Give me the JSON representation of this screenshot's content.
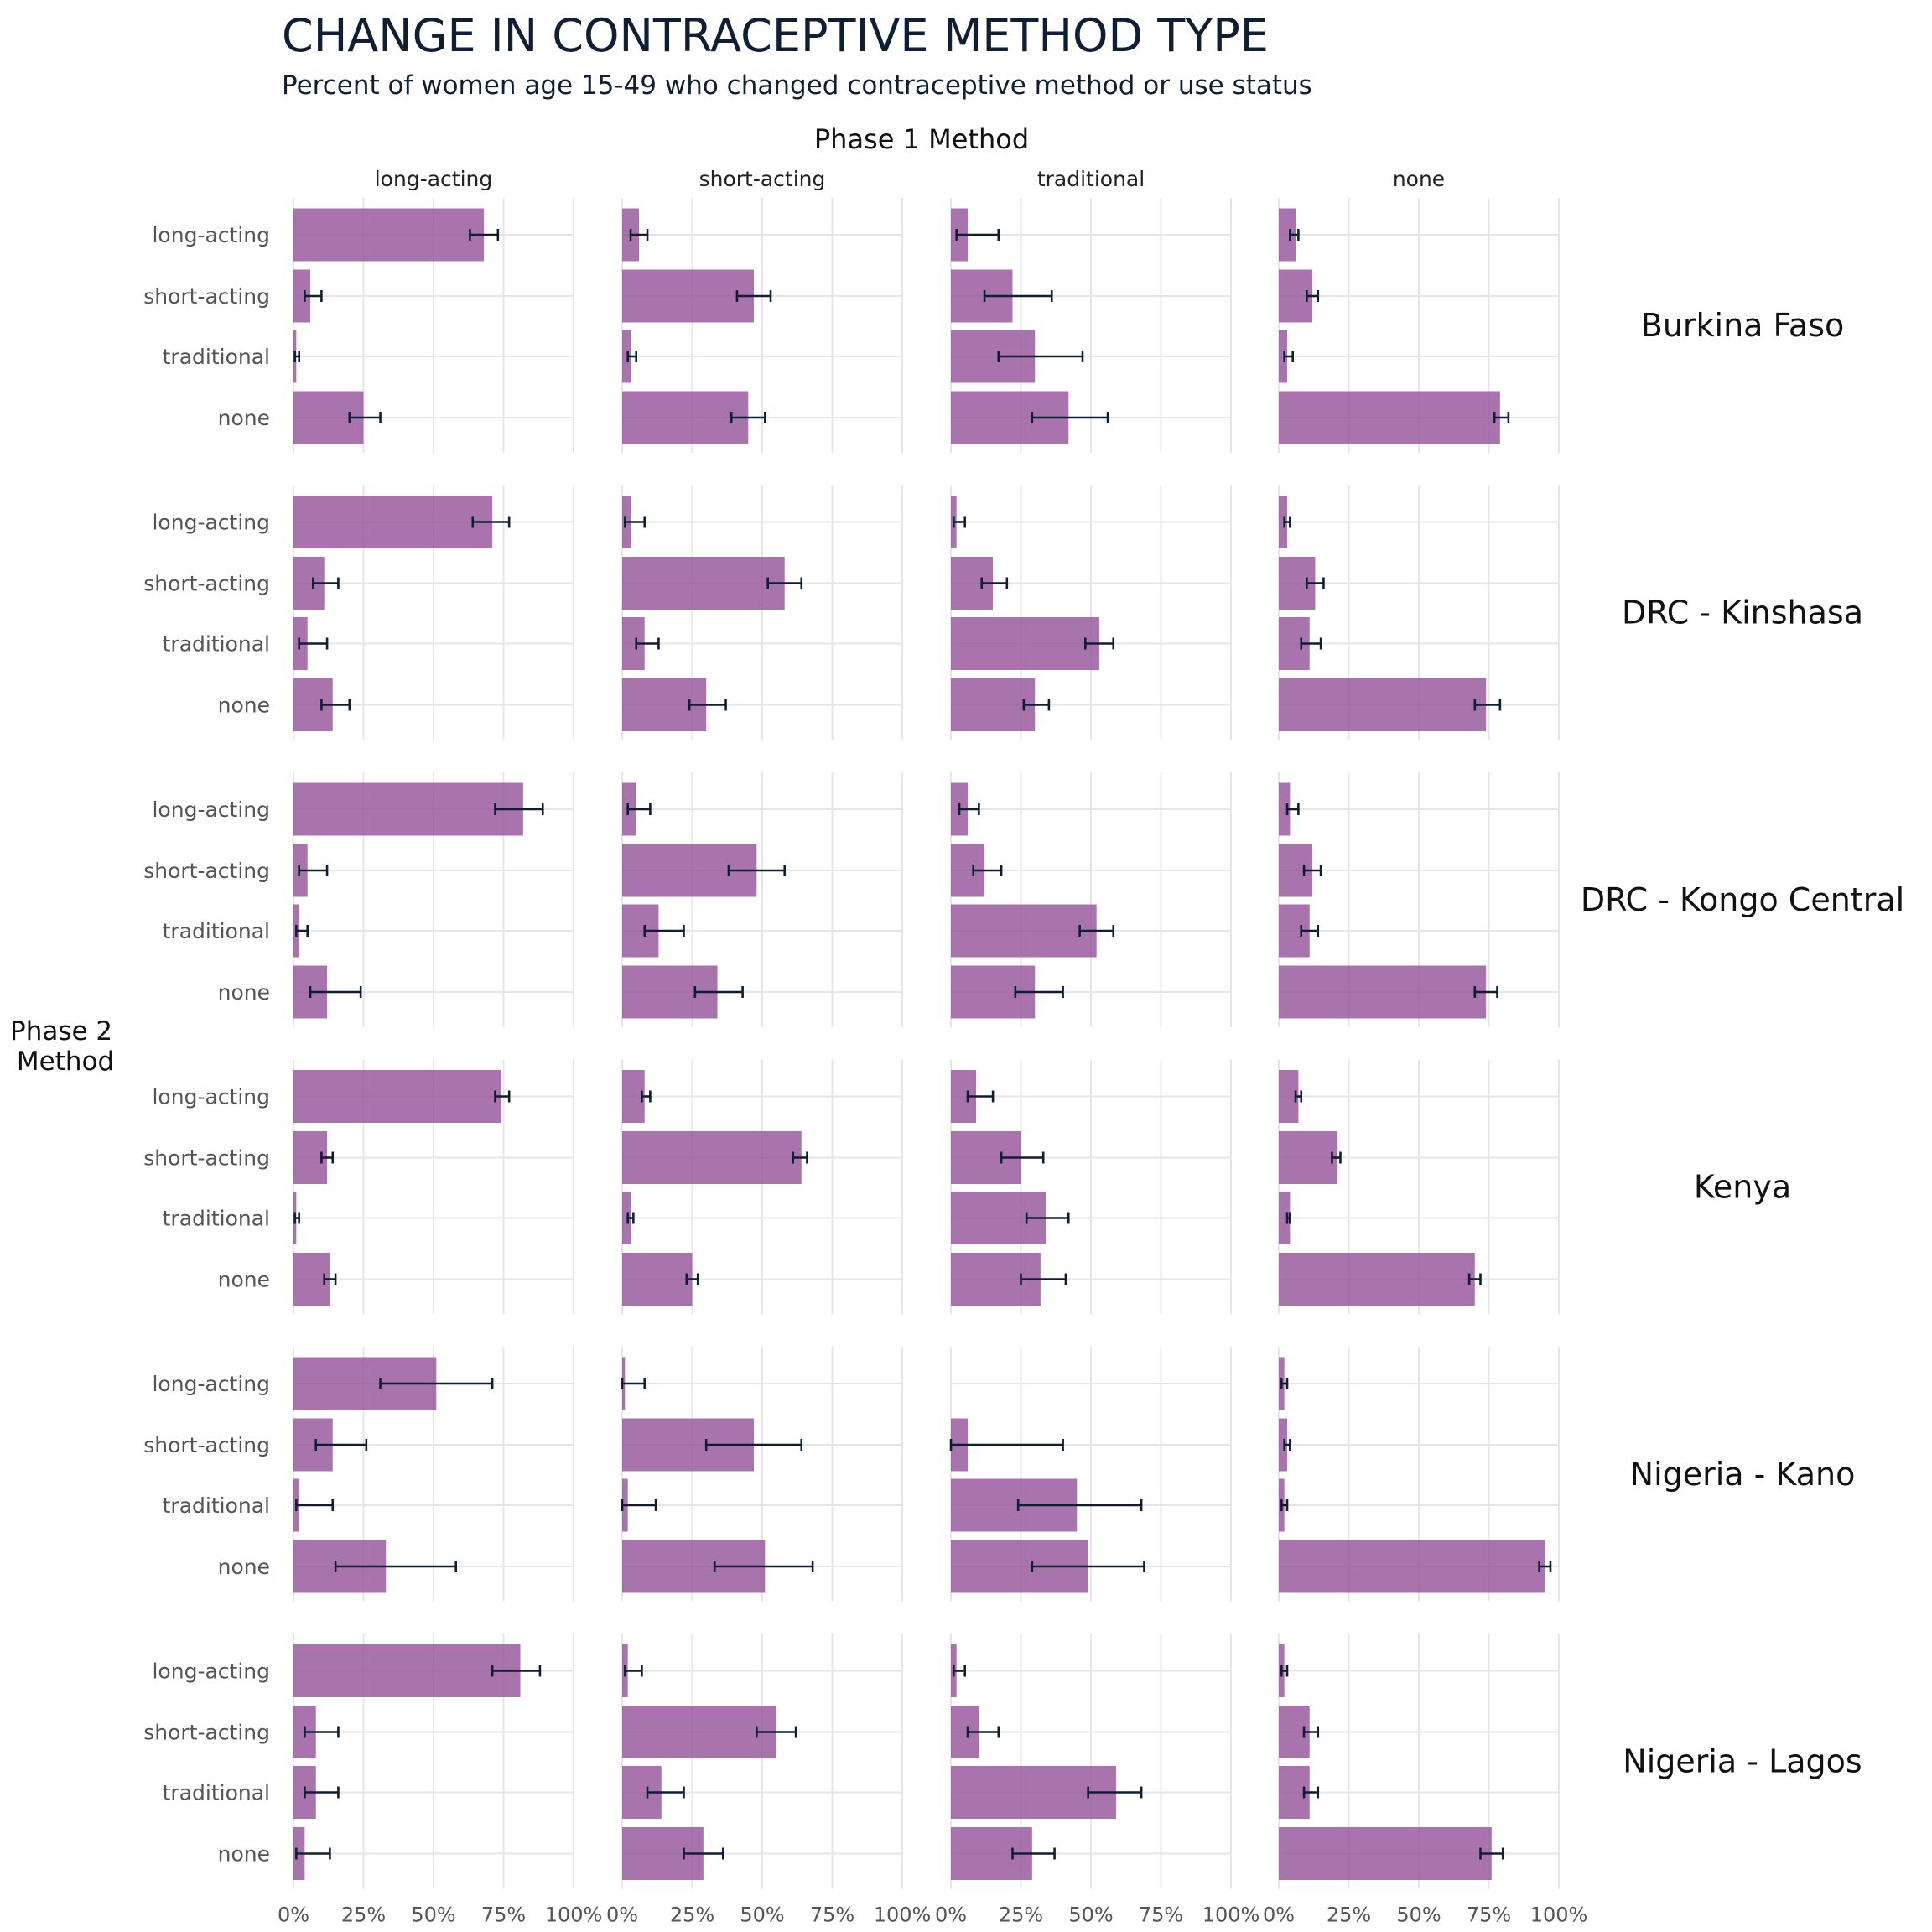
{
  "chart_data": {
    "type": "bar",
    "orientation": "horizontal",
    "title": "CHANGE IN CONTRACEPTIVE METHOD TYPE",
    "subtitle": "Percent of women age 15-49 who changed contraceptive method or use status",
    "column_facet_title": "Phase 1 Method",
    "row_axis_title": [
      "Phase 2",
      "Method"
    ],
    "columns": [
      "long-acting",
      "short-acting",
      "traditional",
      "none"
    ],
    "categories": [
      "long-acting",
      "short-acting",
      "traditional",
      "none"
    ],
    "x_ticks": [
      "0%",
      "25%",
      "50%",
      "75%",
      "100%"
    ],
    "xlim": [
      0,
      100
    ],
    "grid": true,
    "bar_color": "#93519A",
    "errorbar_color": "#0F1F33",
    "panels": [
      {
        "name": "Burkina Faso",
        "data": [
          [
            [
              68,
              63,
              73
            ],
            [
              6,
              4,
              10
            ],
            [
              1,
              0.5,
              2
            ],
            [
              25,
              20,
              31
            ]
          ],
          [
            [
              6,
              3,
              9
            ],
            [
              47,
              41,
              53
            ],
            [
              3,
              2,
              5
            ],
            [
              45,
              39,
              51
            ]
          ],
          [
            [
              6,
              2,
              17
            ],
            [
              22,
              12,
              36
            ],
            [
              30,
              17,
              47
            ],
            [
              42,
              29,
              56
            ]
          ],
          [
            [
              6,
              4,
              7
            ],
            [
              12,
              10,
              14
            ],
            [
              3,
              2,
              5
            ],
            [
              79,
              77,
              82
            ]
          ]
        ]
      },
      {
        "name": "DRC - Kinshasa",
        "data": [
          [
            [
              71,
              64,
              77
            ],
            [
              11,
              7,
              16
            ],
            [
              5,
              2,
              12
            ],
            [
              14,
              10,
              20
            ]
          ],
          [
            [
              3,
              1,
              8
            ],
            [
              58,
              52,
              64
            ],
            [
              8,
              5,
              13
            ],
            [
              30,
              24,
              37
            ]
          ],
          [
            [
              2,
              1,
              5
            ],
            [
              15,
              11,
              20
            ],
            [
              53,
              48,
              58
            ],
            [
              30,
              26,
              35
            ]
          ],
          [
            [
              3,
              2,
              4
            ],
            [
              13,
              10,
              16
            ],
            [
              11,
              8,
              15
            ],
            [
              74,
              70,
              79
            ]
          ]
        ]
      },
      {
        "name": "DRC - Kongo Central",
        "data": [
          [
            [
              82,
              72,
              89
            ],
            [
              5,
              2,
              12
            ],
            [
              2,
              1,
              5
            ],
            [
              12,
              6,
              24
            ]
          ],
          [
            [
              5,
              2,
              10
            ],
            [
              48,
              38,
              58
            ],
            [
              13,
              8,
              22
            ],
            [
              34,
              26,
              43
            ]
          ],
          [
            [
              6,
              3,
              10
            ],
            [
              12,
              8,
              18
            ],
            [
              52,
              46,
              58
            ],
            [
              30,
              23,
              40
            ]
          ],
          [
            [
              4,
              3,
              7
            ],
            [
              12,
              9,
              15
            ],
            [
              11,
              8,
              14
            ],
            [
              74,
              70,
              78
            ]
          ]
        ]
      },
      {
        "name": "Kenya",
        "data": [
          [
            [
              74,
              72,
              77
            ],
            [
              12,
              10,
              14
            ],
            [
              1,
              0.5,
              2
            ],
            [
              13,
              11,
              15
            ]
          ],
          [
            [
              8,
              7,
              10
            ],
            [
              64,
              61,
              66
            ],
            [
              3,
              2,
              4
            ],
            [
              25,
              23,
              27
            ]
          ],
          [
            [
              9,
              6,
              15
            ],
            [
              25,
              18,
              33
            ],
            [
              34,
              27,
              42
            ],
            [
              32,
              25,
              41
            ]
          ],
          [
            [
              7,
              6,
              8
            ],
            [
              21,
              19,
              22
            ],
            [
              4,
              3,
              4
            ],
            [
              70,
              68,
              72
            ]
          ]
        ]
      },
      {
        "name": "Nigeria - Kano",
        "data": [
          [
            [
              51,
              31,
              71
            ],
            [
              14,
              8,
              26
            ],
            [
              2,
              1,
              14
            ],
            [
              33,
              15,
              58
            ]
          ],
          [
            [
              1,
              0,
              8
            ],
            [
              47,
              30,
              64
            ],
            [
              2,
              0,
              12
            ],
            [
              51,
              33,
              68
            ]
          ],
          [
            [
              0,
              0,
              0
            ],
            [
              6,
              0,
              40
            ],
            [
              45,
              24,
              68
            ],
            [
              49,
              29,
              69
            ]
          ],
          [
            [
              2,
              1,
              3
            ],
            [
              3,
              2,
              4
            ],
            [
              2,
              1,
              3
            ],
            [
              95,
              93,
              97
            ]
          ]
        ]
      },
      {
        "name": "Nigeria - Lagos",
        "data": [
          [
            [
              81,
              71,
              88
            ],
            [
              8,
              4,
              16
            ],
            [
              8,
              4,
              16
            ],
            [
              4,
              1,
              13
            ]
          ],
          [
            [
              2,
              1,
              7
            ],
            [
              55,
              48,
              62
            ],
            [
              14,
              9,
              22
            ],
            [
              29,
              22,
              36
            ]
          ],
          [
            [
              2,
              1,
              5
            ],
            [
              10,
              6,
              17
            ],
            [
              59,
              49,
              68
            ],
            [
              29,
              22,
              37
            ]
          ],
          [
            [
              2,
              1,
              3
            ],
            [
              11,
              9,
              14
            ],
            [
              11,
              9,
              14
            ],
            [
              76,
              72,
              80
            ]
          ]
        ]
      }
    ],
    "data_format": "panels[r].data[column][category] = [estimate, lower, upper] in percent"
  }
}
